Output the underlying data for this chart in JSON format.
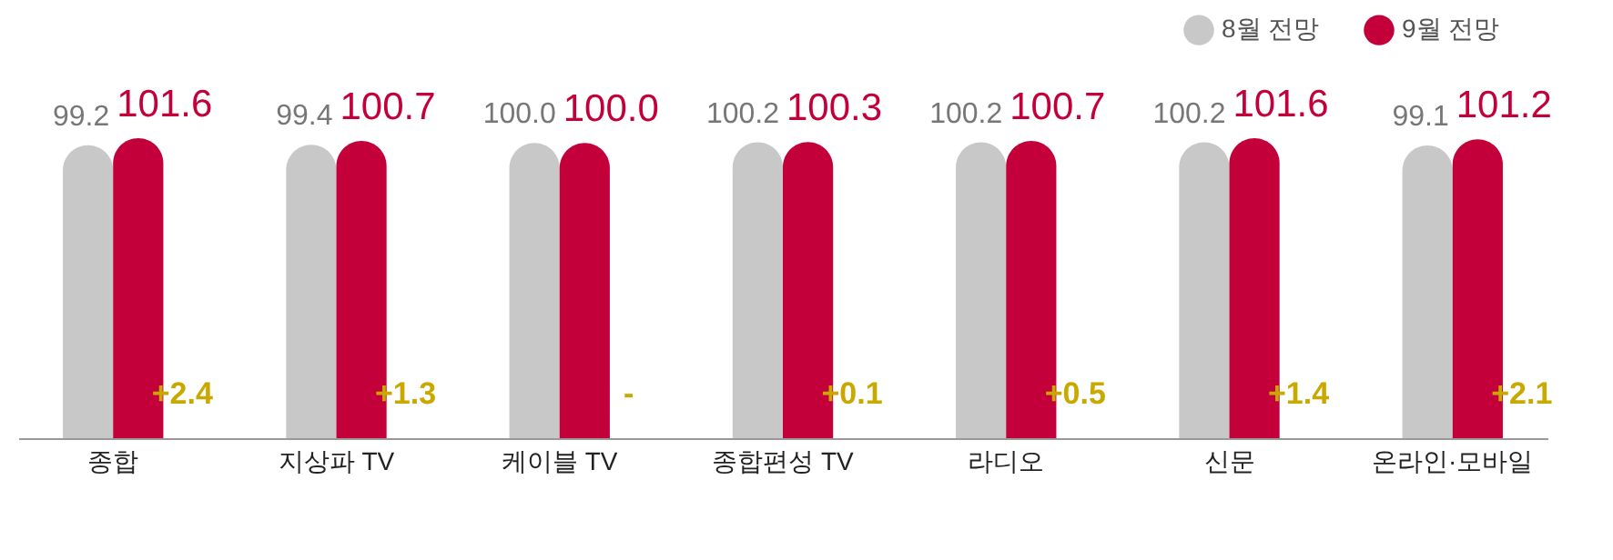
{
  "chart_data": {
    "type": "bar",
    "categories": [
      "종합",
      "지상파 TV",
      "케이블 TV",
      "종합편성 TV",
      "라디오",
      "신문",
      "온라인·모바일"
    ],
    "series": [
      {
        "name": "8월 전망",
        "color": "#c8c8c8",
        "values": [
          99.2,
          99.4,
          100.0,
          100.2,
          100.2,
          100.2,
          99.1
        ],
        "value_labels": [
          "99.2",
          "99.4",
          "100.0",
          "100.2",
          "100.2",
          "100.2",
          "99.1"
        ]
      },
      {
        "name": "9월 전망",
        "color": "#c4003a",
        "values": [
          101.6,
          100.7,
          100.0,
          100.3,
          100.7,
          101.6,
          101.2
        ],
        "value_labels": [
          "101.6",
          "100.7",
          "100.0",
          "100.3",
          "100.7",
          "101.6",
          "101.2"
        ]
      }
    ],
    "legend": "top right",
    "annotations": [
      {
        "text": "+2.4",
        "x": "종합"
      },
      {
        "text": "+1.3",
        "x": "지상파 TV"
      },
      {
        "text": "-",
        "x": "케이블 TV"
      },
      {
        "text": "+0.1",
        "x": "종합편성 TV"
      },
      {
        "text": "+0.5",
        "x": "라디오"
      },
      {
        "text": "+1.4",
        "x": "신문"
      },
      {
        "text": "+2.1",
        "x": "온라인·모바일"
      }
    ]
  }
}
